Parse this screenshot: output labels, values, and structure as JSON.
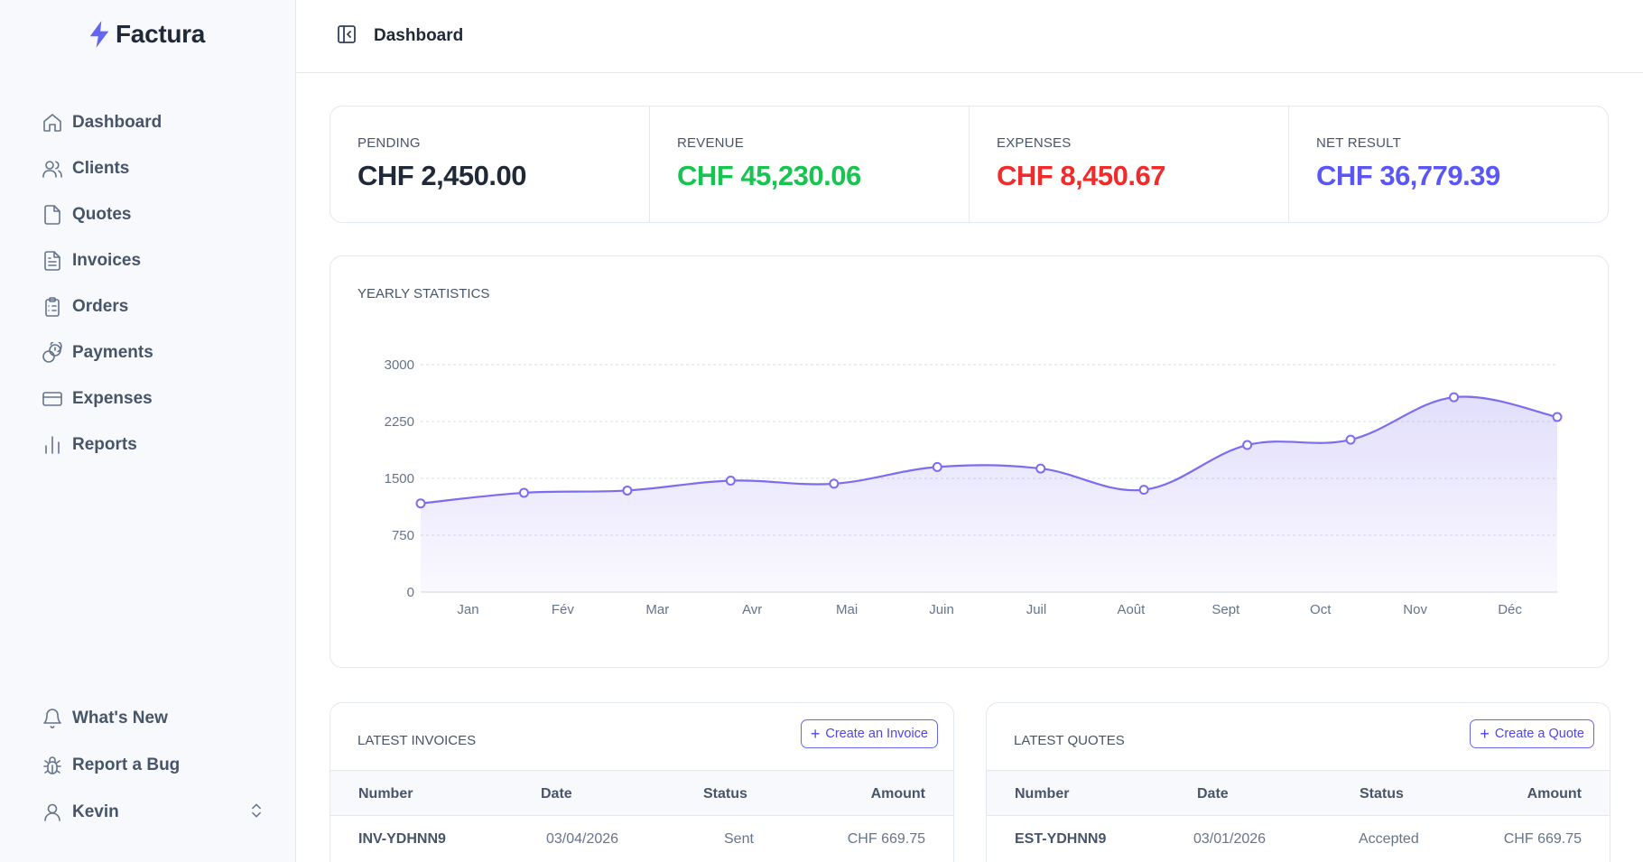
{
  "brand": {
    "name": "Factura",
    "accent": "#6366f1"
  },
  "sidebar": {
    "items": [
      {
        "label": "Dashboard",
        "icon": "home-icon"
      },
      {
        "label": "Clients",
        "icon": "users-icon"
      },
      {
        "label": "Quotes",
        "icon": "file-icon"
      },
      {
        "label": "Invoices",
        "icon": "file-text-icon"
      },
      {
        "label": "Orders",
        "icon": "clipboard-list-icon"
      },
      {
        "label": "Payments",
        "icon": "coins-icon"
      },
      {
        "label": "Expenses",
        "icon": "credit-card-icon"
      },
      {
        "label": "Reports",
        "icon": "bar-chart-icon"
      }
    ],
    "bottom": [
      {
        "label": "What's New",
        "icon": "bell-icon"
      },
      {
        "label": "Report a Bug",
        "icon": "bug-icon"
      }
    ],
    "user": {
      "name": "Kevin",
      "icon": "user-icon"
    }
  },
  "header": {
    "title": "Dashboard"
  },
  "stats": [
    {
      "label": "Pending",
      "value": "CHF 2,450.00",
      "color": "#1f2937"
    },
    {
      "label": "Revenue",
      "value": "CHF 45,230.06",
      "color": "#16c44f"
    },
    {
      "label": "Expenses",
      "value": "CHF 8,450.67",
      "color": "#ef2b2b"
    },
    {
      "label": "Net Result",
      "value": "CHF 36,779.39",
      "color": "#5b57f5"
    }
  ],
  "chart": {
    "title": "YEARLY STATISTICS"
  },
  "chart_data": {
    "type": "area",
    "title": "YEARLY STATISTICS",
    "categories": [
      "Jan",
      "Fév",
      "Mar",
      "Avr",
      "Mai",
      "Juin",
      "Juil",
      "Août",
      "Sept",
      "Oct",
      "Nov",
      "Déc"
    ],
    "series": [
      {
        "values": [
          1170,
          1310,
          1340,
          1470,
          1430,
          1650,
          1630,
          1350,
          1940,
          2010,
          2570,
          2310
        ]
      }
    ],
    "yticks": [
      0,
      750,
      1500,
      2250,
      3000
    ],
    "ylim": [
      0,
      3000
    ],
    "grid": true,
    "color": "#7c6cf0"
  },
  "invoices": {
    "title": "LATEST INVOICES",
    "button": "Create an Invoice",
    "columns": [
      "Number",
      "Date",
      "Status",
      "Amount"
    ],
    "rows": [
      {
        "number": "INV-YDHNN9",
        "date": "03/04/2026",
        "status": "Sent",
        "amount": "CHF 669.75"
      }
    ]
  },
  "quotes": {
    "title": "LATEST QUOTES",
    "button": "Create a Quote",
    "columns": [
      "Number",
      "Date",
      "Status",
      "Amount"
    ],
    "rows": [
      {
        "number": "EST-YDHNN9",
        "date": "03/01/2026",
        "status": "Accepted",
        "amount": "CHF 669.75"
      }
    ]
  }
}
